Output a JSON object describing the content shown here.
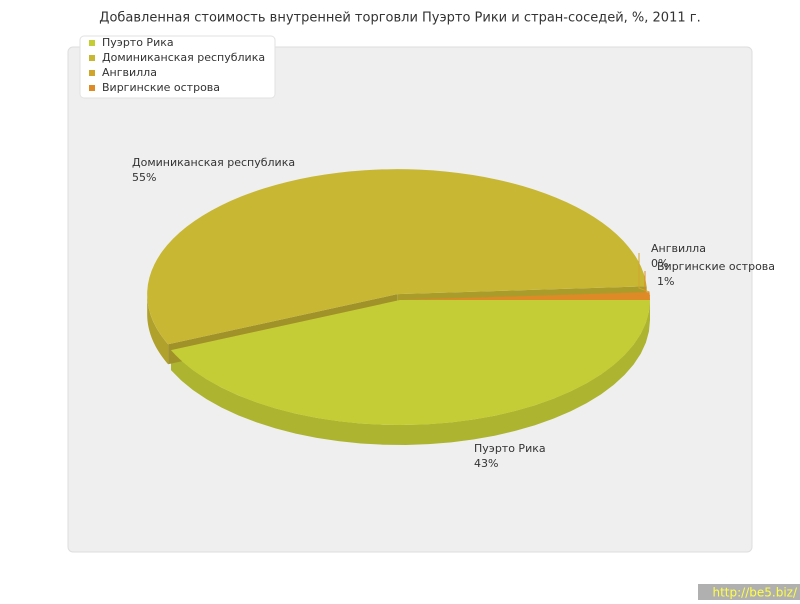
{
  "chart_data": {
    "type": "pie",
    "title": "Добавленная стоимость внутренней торговли Пуэрто Рики и стран-соседей, %, 2011 г.",
    "categories": [
      "Пуэрто Рика",
      "Доминиканская республика",
      "Ангвилла",
      "Виргинские острова"
    ],
    "values": [
      43,
      55,
      0,
      1
    ],
    "value_labels": [
      "43%",
      "55%",
      "0%",
      "1%"
    ],
    "colors": [
      "#c5cd36",
      "#c8b733",
      "#d0a52c",
      "#de8a26"
    ],
    "legend": "top-left",
    "watermark": "http://be5.biz/"
  }
}
